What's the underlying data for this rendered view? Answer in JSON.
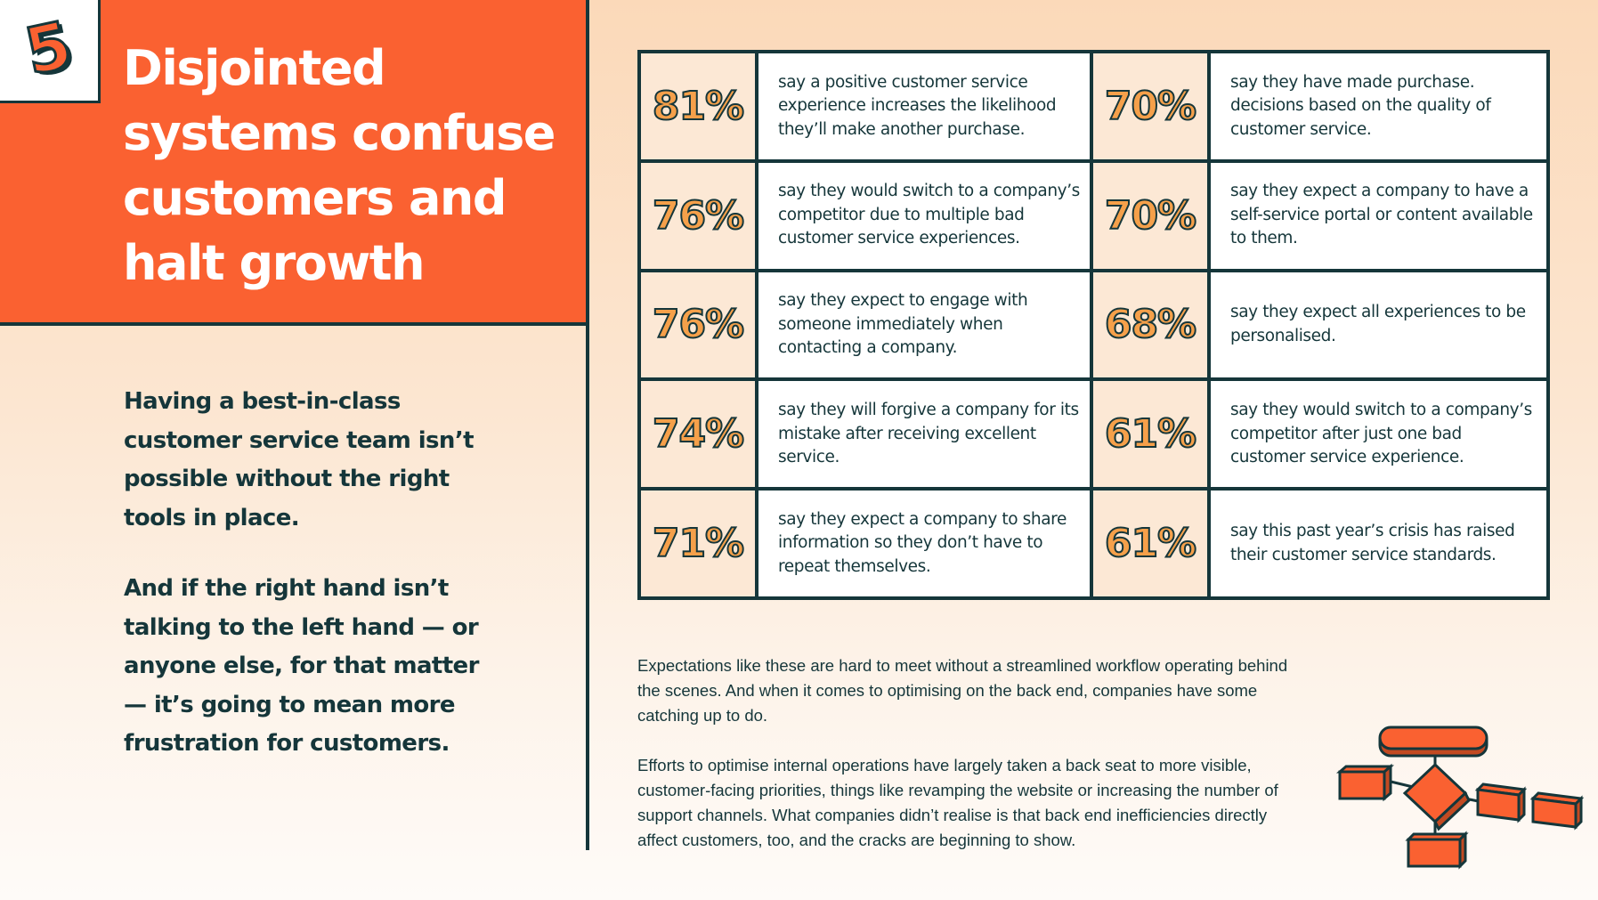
{
  "badge": {
    "number": "5"
  },
  "hero": {
    "title": "Disjointed systems confuse customers and halt growth"
  },
  "intro": {
    "paragraphs": [
      "Having a best-in-class customer service team isn’t possible without the right tools in place.",
      "And if the right hand isn’t talking to the left hand — or anyone else, for that matter — it’s going to mean more frustration for customers."
    ]
  },
  "stats": [
    {
      "left": {
        "pct": "81%",
        "text": "say a positive customer service experience increases the likelihood they’ll make another purchase."
      },
      "right": {
        "pct": "70%",
        "text": "say they have made purchase. decisions based on the quality of customer service."
      }
    },
    {
      "left": {
        "pct": "76%",
        "text": "say they would switch to a company’s competitor due to multiple bad customer service experiences."
      },
      "right": {
        "pct": "70%",
        "text": "say they expect a company to have a self-service portal or content available to them."
      }
    },
    {
      "left": {
        "pct": "76%",
        "text": "say they expect to engage with someone immediately when contacting a company."
      },
      "right": {
        "pct": "68%",
        "text": "say they expect all experiences to be personalised."
      }
    },
    {
      "left": {
        "pct": "74%",
        "text": "say they will forgive a company for its mistake after receiving excellent service."
      },
      "right": {
        "pct": "61%",
        "text": "say they would switch to a company’s competitor after just one bad customer service experience."
      }
    },
    {
      "left": {
        "pct": "71%",
        "text": "say they expect a company to share information so they don’t have to repeat themselves."
      },
      "right": {
        "pct": "61%",
        "text": "say this past year’s crisis has raised their customer service standards."
      }
    }
  ],
  "body": {
    "paragraphs": [
      "Expectations like these are hard to meet without a streamlined workflow operating behind the scenes. And when it comes to optimising on the back end, companies have some catching up to do.",
      "Efforts to optimise internal operations have largely taken a back seat to more visible, customer-facing priorities, things like revamping the website or increasing the number of support channels. What companies didn’t realise is that back end inefficiencies directly affect customers, too, and the cracks are beginning to show."
    ]
  },
  "colors": {
    "accent": "#fa6131",
    "dark": "#15363a",
    "stat": "#f5a04a"
  }
}
